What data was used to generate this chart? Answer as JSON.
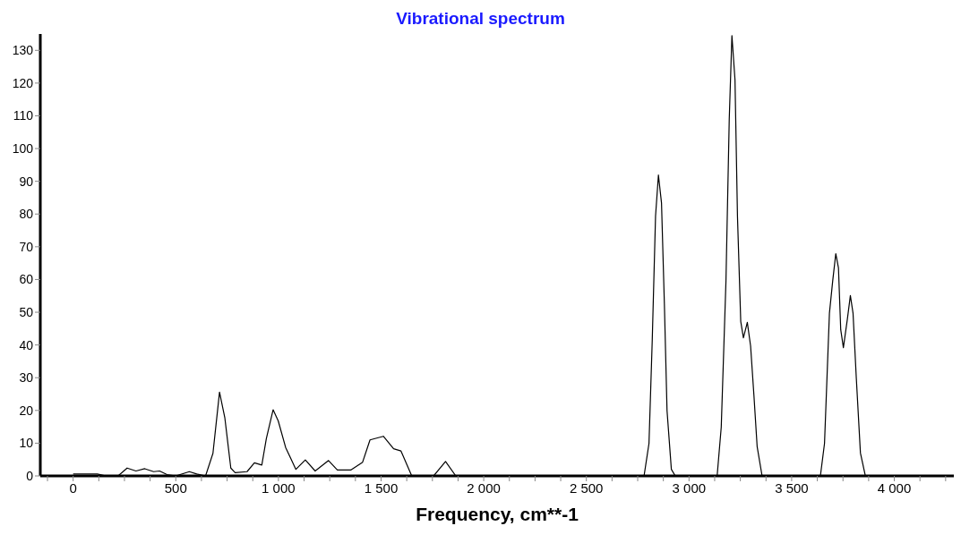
{
  "chart_data": {
    "type": "line",
    "title": "Vibrational spectrum",
    "xlabel": "Frequency, cm**-1",
    "x": [
      0,
      60,
      118,
      160,
      219,
      263,
      306,
      349,
      392,
      421,
      457,
      500,
      566,
      602,
      645,
      681,
      713,
      739,
      768,
      789,
      847,
      883,
      919,
      941,
      974,
      999,
      1035,
      1085,
      1131,
      1179,
      1244,
      1287,
      1352,
      1410,
      1446,
      1511,
      1561,
      1597,
      1648,
      1756,
      1814,
      1864,
      2781,
      2805,
      2821,
      2837,
      2851,
      2866,
      2880,
      2893,
      2914,
      2933,
      3137,
      3157,
      3180,
      3196,
      3209,
      3224,
      3236,
      3252,
      3265,
      3284,
      3300,
      3316,
      3332,
      3356,
      3640,
      3660,
      3684,
      3700,
      3715,
      3728,
      3739,
      3752,
      3771,
      3786,
      3799,
      3815,
      3835,
      3859,
      4000
    ],
    "series": [
      {
        "color": "#000000",
        "values": [
          0.6,
          0.6,
          0.6,
          0,
          0,
          2.4,
          1.5,
          2.2,
          1.3,
          1.5,
          0.4,
          0,
          1.3,
          0.6,
          0,
          6.9,
          25.6,
          17.7,
          2.4,
          1.0,
          1.3,
          4.0,
          3.3,
          11.4,
          20.2,
          16.8,
          8.7,
          2.0,
          4.9,
          1.5,
          4.7,
          1.8,
          1.8,
          4.2,
          11.0,
          12.1,
          8.3,
          7.6,
          0.2,
          0,
          4.4,
          0,
          0,
          9.9,
          41.7,
          79.4,
          91.9,
          83.4,
          52.6,
          19.9,
          2.0,
          0,
          0,
          14.9,
          59.6,
          109,
          134.5,
          121,
          79.4,
          47.2,
          42.2,
          46.9,
          39.7,
          24.8,
          8.9,
          0,
          0,
          9.9,
          49.7,
          59.6,
          67.9,
          63.6,
          44.7,
          39.2,
          47.7,
          55.1,
          49.7,
          29.8,
          7.0,
          0,
          0
        ]
      }
    ],
    "xlim": [
      -160,
      4290
    ],
    "xticks": [
      {
        "value": -125,
        "label": null
      },
      0,
      {
        "value": 125,
        "label": null
      },
      {
        "value": 250,
        "label": null
      },
      {
        "value": 375,
        "label": null
      },
      500,
      {
        "value": 625,
        "label": null
      },
      {
        "value": 750,
        "label": null
      },
      {
        "value": 875,
        "label": null
      },
      {
        "value": 1000,
        "label": "1 000"
      },
      {
        "value": 1125,
        "label": null
      },
      {
        "value": 1250,
        "label": null
      },
      {
        "value": 1375,
        "label": null
      },
      {
        "value": 1500,
        "label": "1 500"
      },
      {
        "value": 1625,
        "label": null
      },
      {
        "value": 1750,
        "label": null
      },
      {
        "value": 1875,
        "label": null
      },
      {
        "value": 2000,
        "label": "2 000"
      },
      {
        "value": 2125,
        "label": null
      },
      {
        "value": 2250,
        "label": null
      },
      {
        "value": 2375,
        "label": null
      },
      {
        "value": 2500,
        "label": "2 500"
      },
      {
        "value": 2625,
        "label": null
      },
      {
        "value": 2750,
        "label": null
      },
      {
        "value": 2875,
        "label": null
      },
      {
        "value": 3000,
        "label": "3 000"
      },
      {
        "value": 3125,
        "label": null
      },
      {
        "value": 3250,
        "label": null
      },
      {
        "value": 3375,
        "label": null
      },
      {
        "value": 3500,
        "label": "3 500"
      },
      {
        "value": 3625,
        "label": null
      },
      {
        "value": 3750,
        "label": null
      },
      {
        "value": 3875,
        "label": null
      },
      {
        "value": 4000,
        "label": "4 000"
      },
      {
        "value": 4125,
        "label": null
      },
      {
        "value": 4250,
        "label": null
      }
    ],
    "ylim": [
      0,
      135
    ],
    "yticks": [
      0,
      10,
      20,
      30,
      40,
      50,
      60,
      70,
      80,
      90,
      100,
      110,
      120,
      130
    ],
    "grid": false,
    "legend": false,
    "marker": "none",
    "line_style": "solid"
  }
}
